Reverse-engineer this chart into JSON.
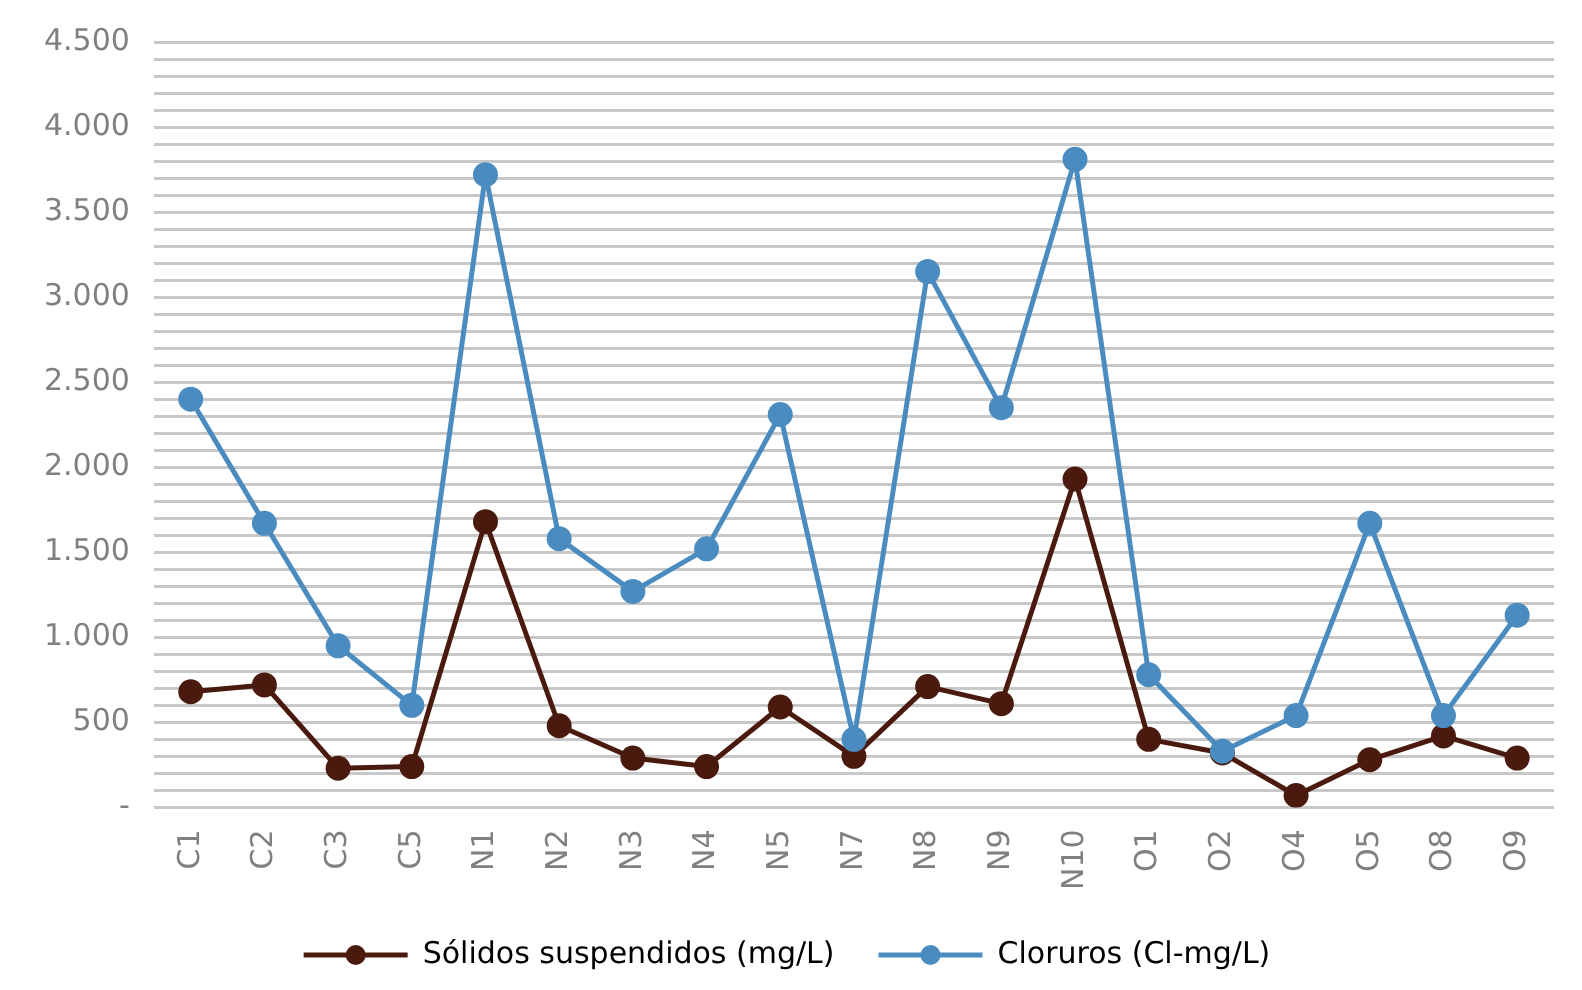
{
  "chart_data": {
    "type": "line",
    "categories": [
      "C1",
      "C2",
      "C3",
      "C5",
      "N1",
      "N2",
      "N3",
      "N4",
      "N5",
      "N7",
      "N8",
      "N9",
      "N10",
      "O1",
      "O2",
      "O4",
      "O5",
      "O8",
      "O9"
    ],
    "series": [
      {
        "name": "Sólidos suspendidos (mg/L)",
        "color": "#4a1a0e",
        "values": [
          680,
          720,
          230,
          240,
          1680,
          480,
          290,
          240,
          590,
          300,
          710,
          610,
          1930,
          400,
          320,
          70,
          280,
          420,
          290
        ]
      },
      {
        "name": "Cloruros (Cl-mg/L)",
        "color": "#4a8bc0",
        "values": [
          2400,
          1670,
          950,
          600,
          3720,
          1580,
          1270,
          1520,
          2310,
          400,
          3150,
          2350,
          3810,
          780,
          330,
          540,
          1670,
          540,
          1130
        ]
      }
    ],
    "ylim": [
      0,
      4500
    ],
    "yticks": [
      {
        "value": 0,
        "label": "-"
      },
      {
        "value": 100,
        "label": null
      },
      {
        "value": 200,
        "label": null
      },
      {
        "value": 300,
        "label": null
      },
      {
        "value": 400,
        "label": null
      },
      500,
      {
        "value": 600,
        "label": null
      },
      {
        "value": 700,
        "label": null
      },
      {
        "value": 800,
        "label": null
      },
      {
        "value": 900,
        "label": null
      },
      {
        "value": 1000,
        "label": "1.000"
      },
      {
        "value": 1100,
        "label": null
      },
      {
        "value": 1200,
        "label": null
      },
      {
        "value": 1300,
        "label": null
      },
      {
        "value": 1400,
        "label": null
      },
      {
        "value": 1500,
        "label": "1.500"
      },
      {
        "value": 1600,
        "label": null
      },
      {
        "value": 1700,
        "label": null
      },
      {
        "value": 1800,
        "label": null
      },
      {
        "value": 1900,
        "label": null
      },
      {
        "value": 2000,
        "label": "2.000"
      },
      {
        "value": 2100,
        "label": null
      },
      {
        "value": 2200,
        "label": null
      },
      {
        "value": 2300,
        "label": null
      },
      {
        "value": 2400,
        "label": null
      },
      {
        "value": 2500,
        "label": "2.500"
      },
      {
        "value": 2600,
        "label": null
      },
      {
        "value": 2700,
        "label": null
      },
      {
        "value": 2800,
        "label": null
      },
      {
        "value": 2900,
        "label": null
      },
      {
        "value": 3000,
        "label": "3.000"
      },
      {
        "value": 3100,
        "label": null
      },
      {
        "value": 3200,
        "label": null
      },
      {
        "value": 3300,
        "label": null
      },
      {
        "value": 3400,
        "label": null
      },
      {
        "value": 3500,
        "label": "3.500"
      },
      {
        "value": 3600,
        "label": null
      },
      {
        "value": 3700,
        "label": null
      },
      {
        "value": 3800,
        "label": null
      },
      {
        "value": 3900,
        "label": null
      },
      {
        "value": 4000,
        "label": "4.000"
      },
      {
        "value": 4100,
        "label": null
      },
      {
        "value": 4200,
        "label": null
      },
      {
        "value": 4300,
        "label": null
      },
      {
        "value": 4400,
        "label": null
      },
      {
        "value": 4500,
        "label": "4.500"
      }
    ],
    "grid": "y",
    "legend": "bottom",
    "marker": "circle",
    "line_style": "solid"
  }
}
